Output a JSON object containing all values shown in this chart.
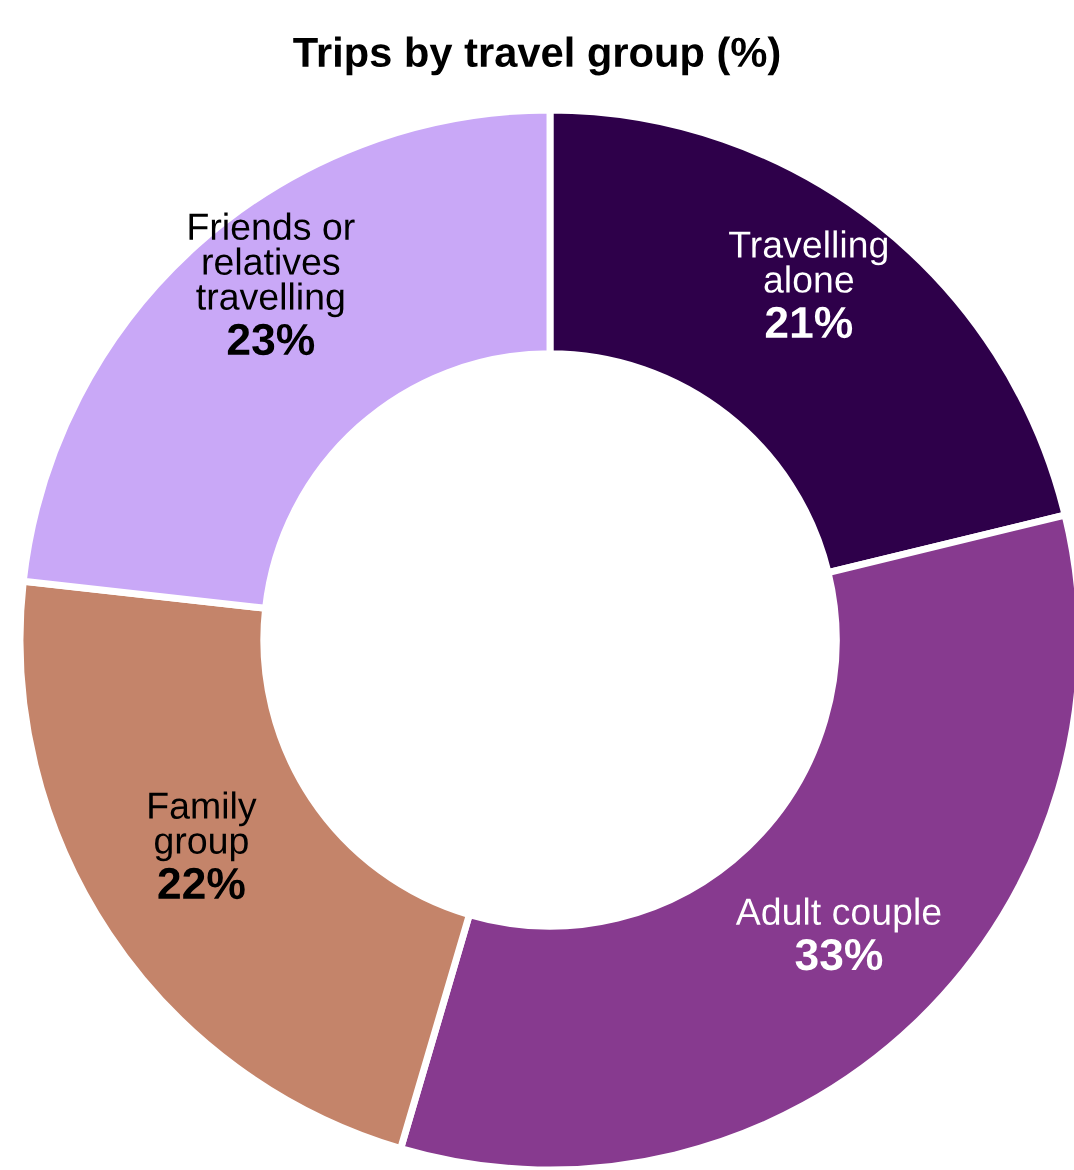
{
  "chart_data": {
    "type": "donut",
    "title": "Trips by travel group (%)",
    "categories": [
      "Travelling\nalone",
      "Adult couple",
      "Family\ngroup",
      "Friends or\nrelatives\ntravelling"
    ],
    "values": [
      21,
      33,
      22,
      23
    ],
    "value_labels": [
      "21%",
      "33%",
      "22%",
      "23%"
    ],
    "colors": [
      "#2e004a",
      "#873a8f",
      "#c4846a",
      "#c9a8f7"
    ],
    "legend": false
  }
}
